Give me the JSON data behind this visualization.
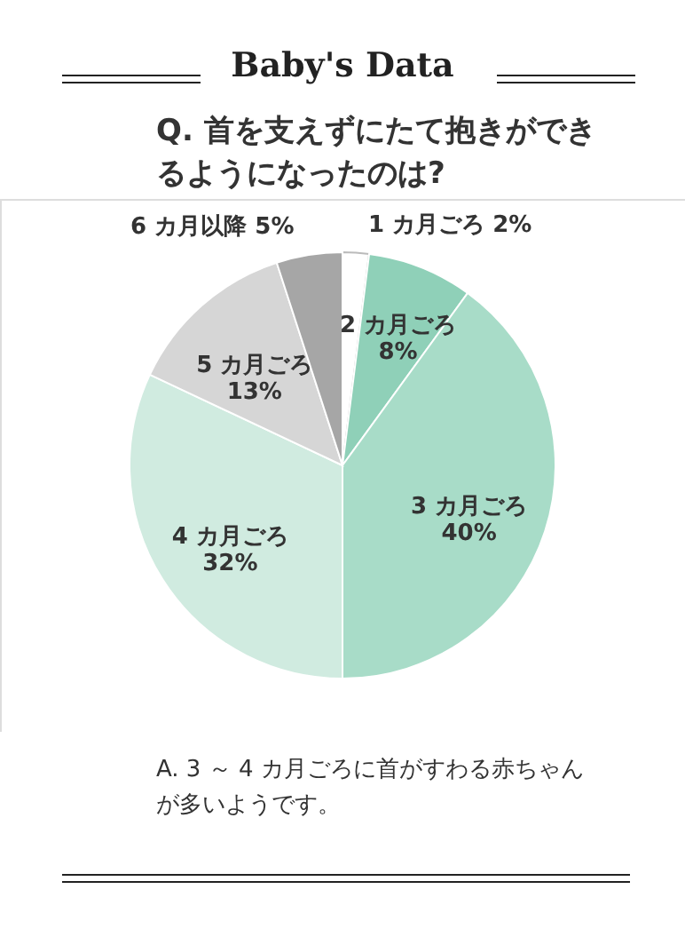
{
  "chart_data": {
    "type": "pie",
    "title": "Baby's Data",
    "subtitle": "Q. 首を支えずにたて抱きができるようになったのは?",
    "categories": [
      "1 カ月ごろ",
      "2 カ月ごろ",
      "3 カ月ごろ",
      "4 カ月ごろ",
      "5 カ月ごろ",
      "6 カ月以降"
    ],
    "values": [
      2,
      8,
      40,
      32,
      13,
      5
    ],
    "value_labels": [
      "2%",
      "8%",
      "40%",
      "32%",
      "13%",
      "5%"
    ],
    "colors": [
      "#ffffff",
      "#8fd0b8",
      "#a8dcc8",
      "#d0ebe0",
      "#d6d6d6",
      "#a6a6a6"
    ],
    "annotations": [
      "A. 3 ～ 4 カ月ごろに首がすわる赤ちゃんが多いようです。"
    ]
  }
}
